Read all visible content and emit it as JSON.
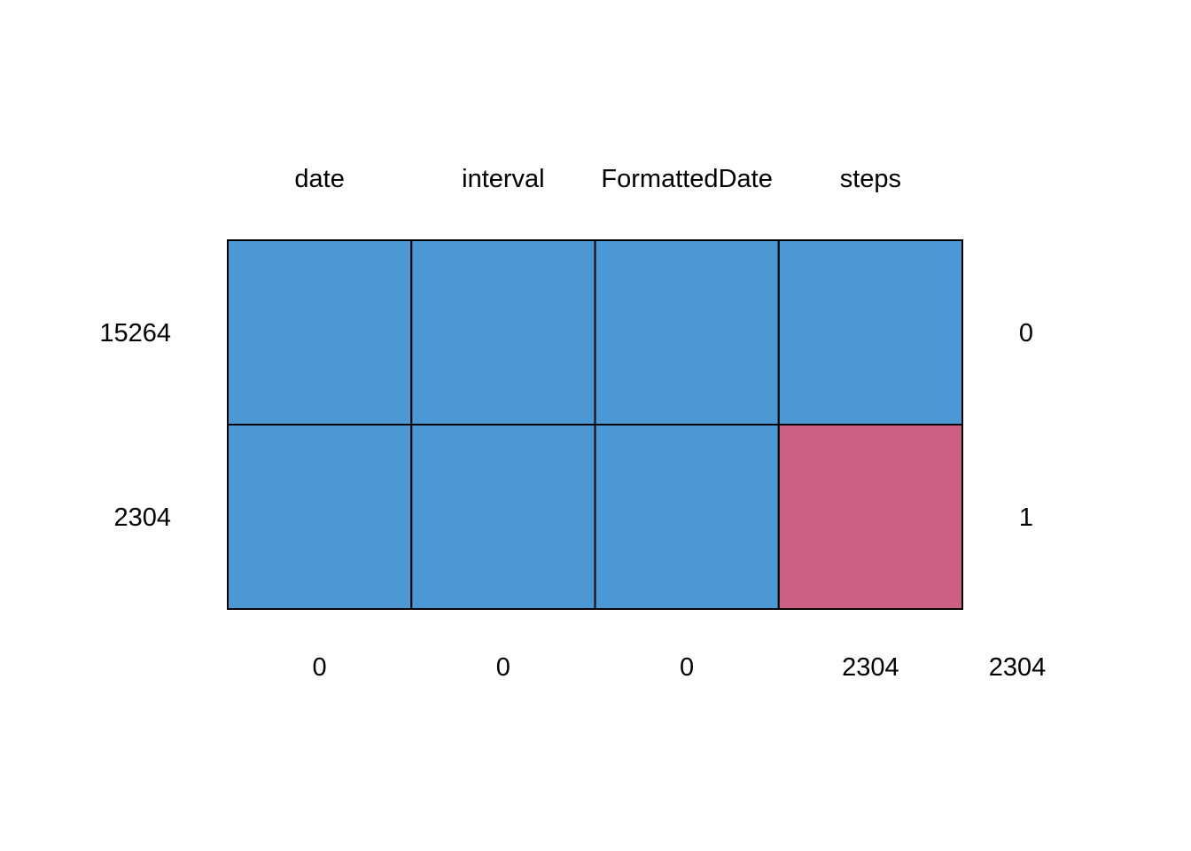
{
  "chart_data": {
    "type": "heatmap",
    "title": "",
    "columns": [
      "date",
      "interval",
      "FormattedDate",
      "steps"
    ],
    "rows": [
      {
        "count": "15264",
        "missing_vars": "0",
        "cells": [
          false,
          false,
          false,
          false
        ]
      },
      {
        "count": "2304",
        "missing_vars": "1",
        "cells": [
          false,
          false,
          false,
          true
        ]
      }
    ],
    "column_missing_totals": [
      "0",
      "0",
      "0",
      "2304"
    ],
    "total_missing": "2304",
    "colors": {
      "observed": "#4c98d4",
      "missing": "#cb5f85",
      "border": "#000000"
    }
  }
}
